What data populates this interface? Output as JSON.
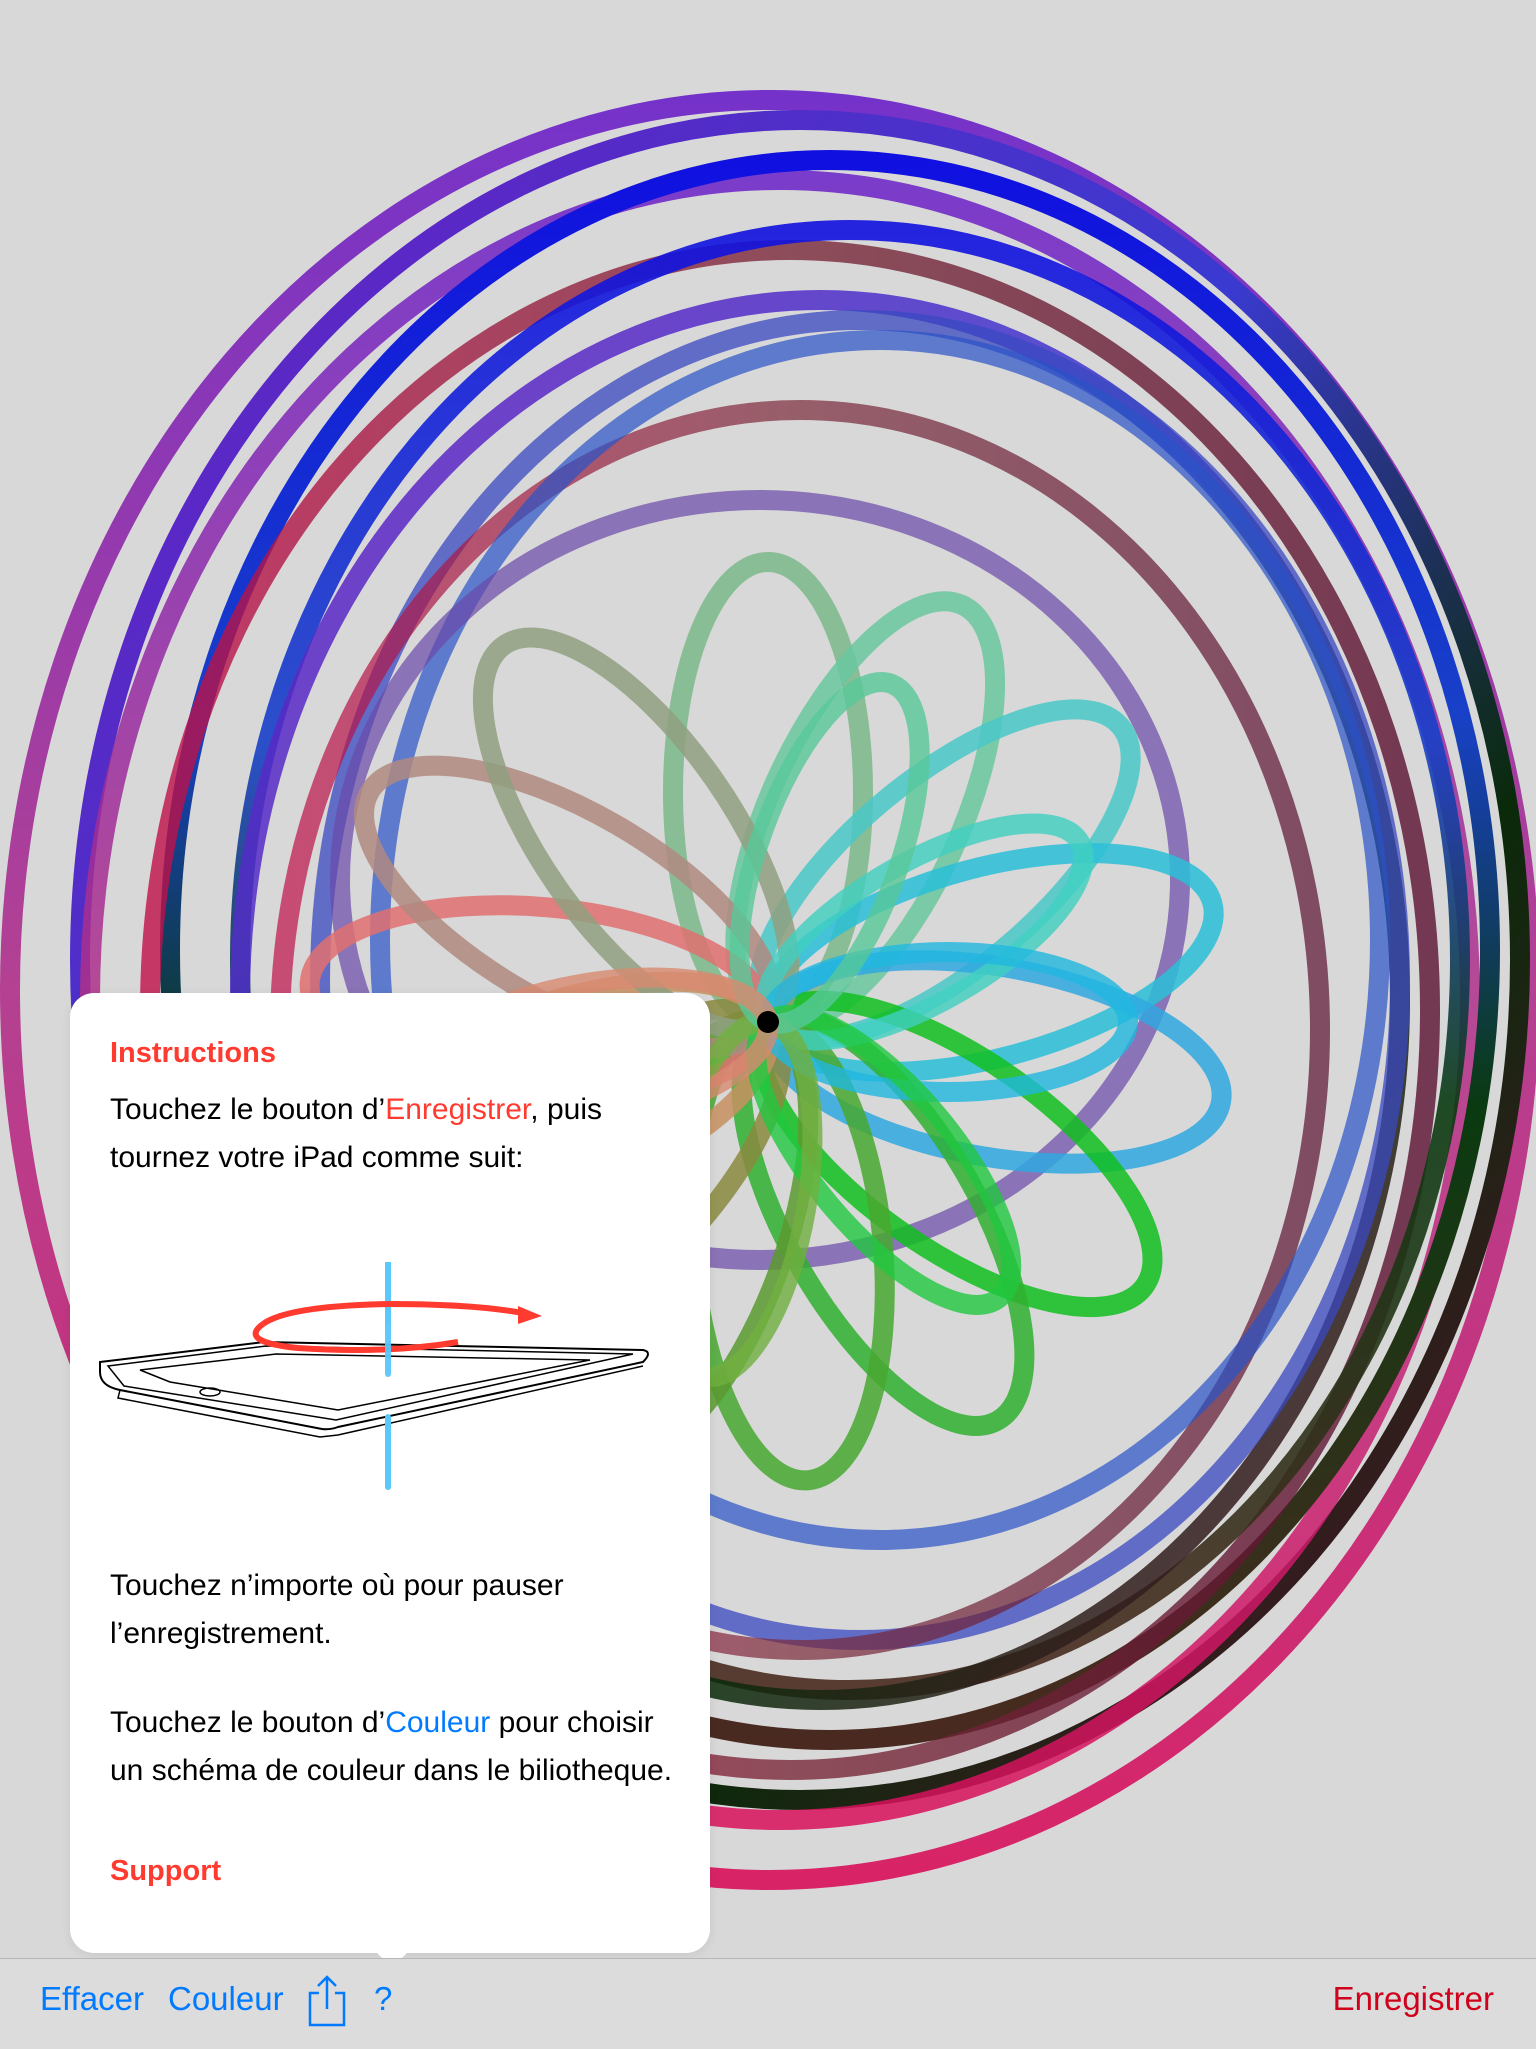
{
  "instructions": {
    "heading": "Instructions",
    "p1": {
      "before": "Touchez le bouton d’",
      "link": "Enregistrer",
      "after": ", puis tournez votre iPad comme suit:"
    },
    "p2": "Touchez n’importe où pour pauser l’enregistrement.",
    "p3": {
      "before": "Touchez le bouton d’",
      "link": "Couleur",
      "after": " pour choisir un schéma de couleur dans le biliotheque."
    },
    "support_heading": "Support"
  },
  "toolbar": {
    "clear_label": "Effacer",
    "color_label": "Couleur",
    "share_icon": "share-icon",
    "help_label": "?",
    "record_label": "Enregistrer"
  },
  "colors": {
    "accent_red": "#ff3b30",
    "link_blue": "#007aff",
    "record_red": "#d0021b",
    "rotation_arrow": "#ff3b30",
    "axis_line": "#5ac8fa"
  }
}
